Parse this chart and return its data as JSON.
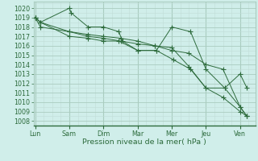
{
  "background_color": "#d0eeea",
  "grid_color_major": "#aaccc0",
  "grid_color_minor": "#c0ddd8",
  "line_color": "#2d6b3c",
  "ylabel": "Pression niveau de la mer( hPa )",
  "ylim": [
    1007.5,
    1020.7
  ],
  "yticks": [
    1008,
    1009,
    1010,
    1011,
    1012,
    1013,
    1014,
    1015,
    1016,
    1017,
    1018,
    1019,
    1020
  ],
  "xtick_labels": [
    "Lun",
    "Sam",
    "Dim",
    "Mar",
    "Mer",
    "Jeu",
    "Ven"
  ],
  "xtick_positions": [
    0,
    1,
    2,
    3,
    4,
    5,
    6
  ],
  "xlim": [
    -0.05,
    6.45
  ],
  "series": [
    {
      "x": [
        0.0,
        0.15,
        1.0,
        1.05,
        1.55,
        2.0,
        2.45,
        2.55,
        3.0,
        3.55,
        4.0,
        4.55,
        5.0,
        5.55,
        6.0,
        6.2
      ],
      "y": [
        1019.0,
        1018.5,
        1020.0,
        1019.5,
        1018.0,
        1018.0,
        1017.5,
        1016.5,
        1015.5,
        1015.5,
        1018.0,
        1017.5,
        1013.5,
        1011.5,
        1013.0,
        1011.5
      ]
    },
    {
      "x": [
        0.0,
        0.15,
        1.0,
        1.55,
        2.0,
        2.45,
        3.0,
        3.55,
        4.05,
        4.55,
        5.0,
        5.55,
        6.0,
        6.2
      ],
      "y": [
        1019.0,
        1018.5,
        1017.0,
        1016.8,
        1016.5,
        1016.5,
        1015.5,
        1015.5,
        1014.5,
        1013.5,
        1011.5,
        1011.5,
        1009.5,
        1008.5
      ]
    },
    {
      "x": [
        0.0,
        0.15,
        1.0,
        1.55,
        2.0,
        2.5,
        3.0,
        3.5,
        4.0,
        4.5,
        5.0,
        5.5,
        6.0,
        6.2
      ],
      "y": [
        1019.0,
        1018.0,
        1017.5,
        1017.0,
        1016.8,
        1016.5,
        1016.2,
        1016.0,
        1015.5,
        1015.2,
        1014.0,
        1013.5,
        1009.5,
        1008.5
      ]
    },
    {
      "x": [
        0.0,
        0.15,
        1.0,
        1.55,
        2.0,
        2.5,
        3.0,
        3.5,
        4.0,
        4.5,
        5.0,
        5.5,
        6.0,
        6.2
      ],
      "y": [
        1019.0,
        1018.5,
        1017.5,
        1017.2,
        1017.0,
        1016.8,
        1016.5,
        1016.0,
        1015.8,
        1013.8,
        1011.5,
        1010.5,
        1009.0,
        1008.5
      ]
    }
  ],
  "tick_fontsize": 5.8,
  "xlabel_fontsize": 6.8,
  "lw": 0.7,
  "ms": 2.0
}
